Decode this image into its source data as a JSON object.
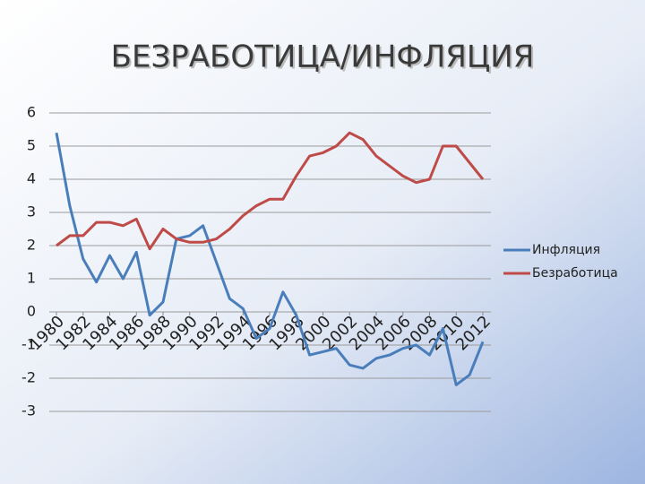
{
  "chart_data": {
    "type": "line",
    "title": "БЕЗРАБОТИЦА/ИНФЛЯЦИЯ",
    "x": [
      1980,
      1981,
      1982,
      1983,
      1984,
      1985,
      1986,
      1987,
      1988,
      1989,
      1990,
      1991,
      1992,
      1993,
      1994,
      1995,
      1996,
      1997,
      1998,
      1999,
      2000,
      2001,
      2002,
      2003,
      2004,
      2005,
      2006,
      2007,
      2008,
      2009,
      2010,
      2011,
      2012
    ],
    "xlim": [
      1980,
      2012
    ],
    "xticks": [
      1980,
      1982,
      1984,
      1986,
      1988,
      1990,
      1992,
      1994,
      1996,
      1998,
      2000,
      2002,
      2004,
      2006,
      2008,
      2010,
      2012
    ],
    "ylim": [
      -3,
      6
    ],
    "yticks": [
      -3,
      -2,
      -1,
      0,
      1,
      2,
      3,
      4,
      5,
      6
    ],
    "grid": true,
    "legend": "right",
    "series": [
      {
        "name": "Инфляция",
        "color": "#4a7ebb",
        "values": [
          5.4,
          3.2,
          1.6,
          0.9,
          1.7,
          1.0,
          1.8,
          -0.1,
          0.3,
          2.2,
          2.3,
          2.6,
          1.5,
          0.4,
          0.1,
          -0.8,
          -0.5,
          0.6,
          -0.1,
          -1.3,
          -1.2,
          -1.1,
          -1.6,
          -1.7,
          -1.4,
          -1.3,
          -1.1,
          -1.0,
          -1.3,
          -0.5,
          -2.2,
          -1.9,
          -0.9
        ]
      },
      {
        "name": "Безработица",
        "color": "#be4b48",
        "values": [
          2.0,
          2.3,
          2.3,
          2.7,
          2.7,
          2.6,
          2.8,
          1.9,
          2.5,
          2.2,
          2.1,
          2.1,
          2.2,
          2.5,
          2.9,
          3.2,
          3.4,
          3.4,
          4.1,
          4.7,
          4.8,
          5.0,
          5.4,
          5.2,
          4.7,
          4.4,
          4.1,
          3.9,
          4.0,
          5.0,
          5.0,
          4.5,
          4.0
        ]
      }
    ]
  }
}
